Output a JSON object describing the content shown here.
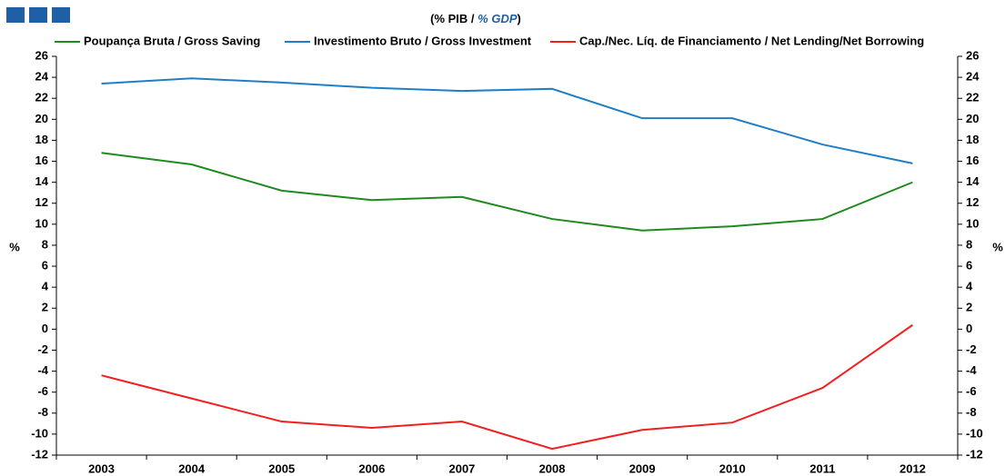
{
  "chart_data": {
    "type": "line",
    "title": [
      "(% PIB / ",
      "% GDP",
      ")"
    ],
    "y_label": "%",
    "y2_label": "%",
    "categories": [
      "2003",
      "2004",
      "2005",
      "2006",
      "2007",
      "2008",
      "2009",
      "2010",
      "2011",
      "2012"
    ],
    "series": [
      {
        "name": "Poupança Bruta / Gross Saving",
        "color": "#1f8a1f",
        "values": [
          16.8,
          15.7,
          13.2,
          12.3,
          12.6,
          10.5,
          9.4,
          9.8,
          10.5,
          14.0
        ]
      },
      {
        "name": "Investimento Bruto / Gross Investment",
        "color": "#1f7fc4",
        "values": [
          23.4,
          23.9,
          23.5,
          23.0,
          22.7,
          22.9,
          20.1,
          20.1,
          17.6,
          15.8
        ]
      },
      {
        "name": "Cap./Nec. Líq. de Financiamento / Net Lending/Net Borrowing",
        "color": "#f02020",
        "values": [
          -4.4,
          -6.6,
          -8.8,
          -9.4,
          -8.8,
          -11.4,
          -9.6,
          -8.9,
          -5.6,
          0.4
        ]
      }
    ],
    "ylim": [
      -12,
      26
    ],
    "yticks": [
      -12,
      -10,
      -8,
      -6,
      -4,
      -2,
      0,
      2,
      4,
      6,
      8,
      10,
      12,
      14,
      16,
      18,
      20,
      22,
      24,
      26
    ],
    "y2lim": [
      -12,
      26
    ],
    "y2ticks": [
      -12,
      -10,
      -8,
      -6,
      -4,
      -2,
      0,
      2,
      4,
      6,
      8,
      10,
      12,
      14,
      16,
      18,
      20,
      22,
      24,
      26
    ],
    "grid": false
  }
}
